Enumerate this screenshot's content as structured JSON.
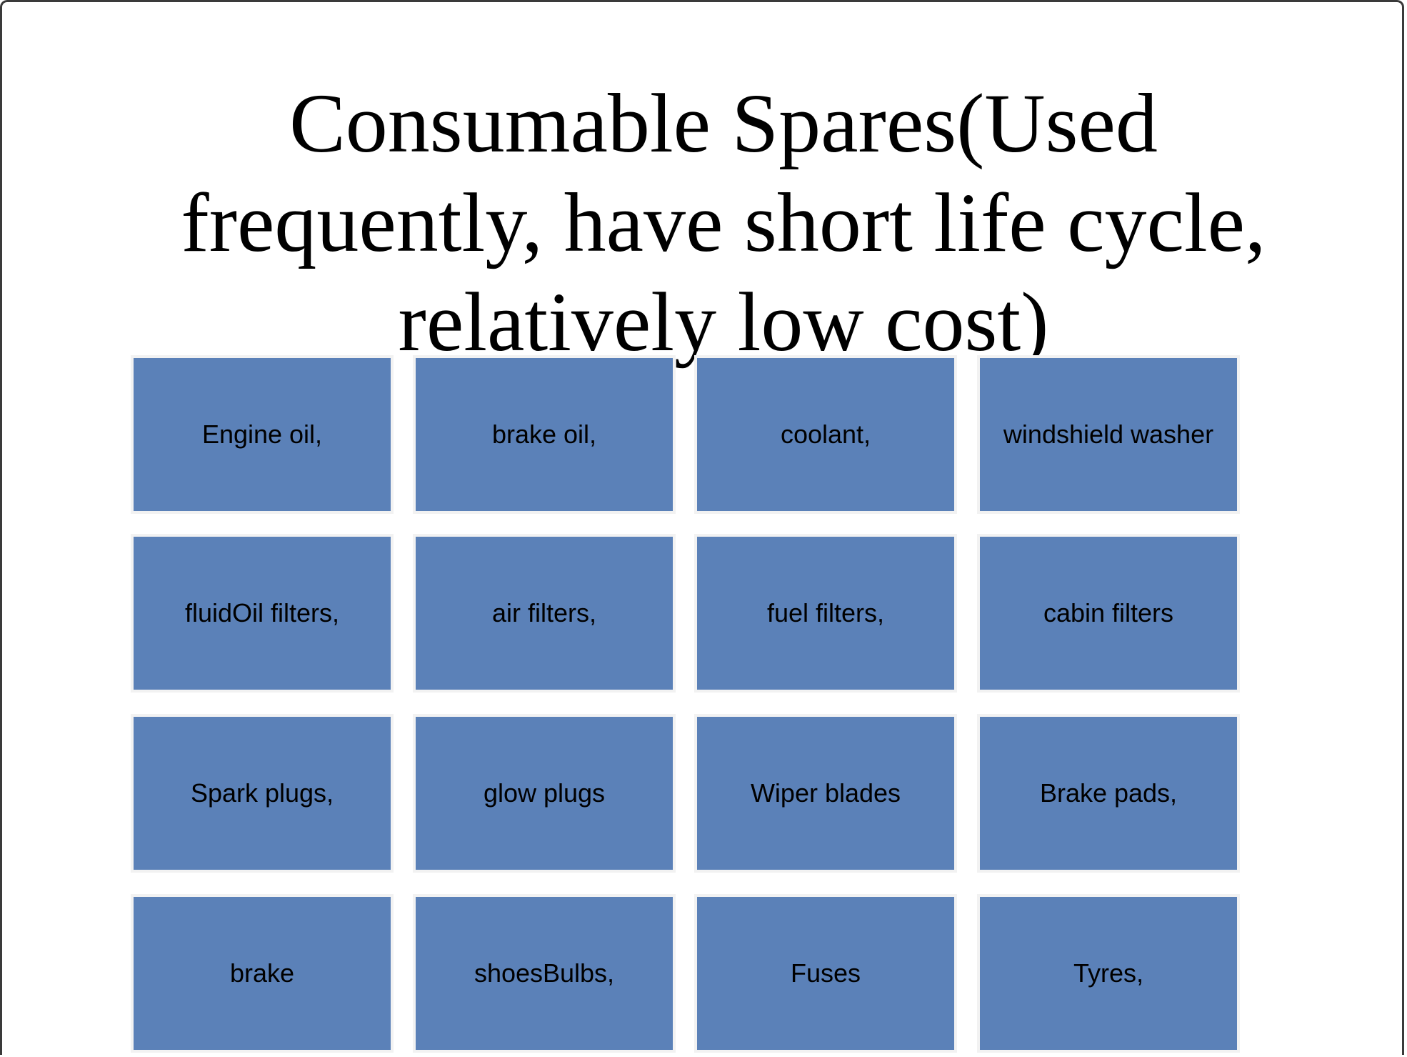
{
  "slide": {
    "title_lines": [
      "Consumable Spares(Used",
      "frequently, have short life cycle,",
      "relatively low cost)"
    ],
    "items": [
      "Engine oil,",
      "brake oil,",
      "coolant,",
      "windshield washer",
      "fluidOil filters,",
      "air filters,",
      "fuel filters,",
      "cabin filters",
      "Spark plugs,",
      "glow plugs",
      "Wiper blades",
      "Brake pads,",
      "brake",
      "shoesBulbs,",
      "Fuses",
      "Tyres,"
    ]
  },
  "colors": {
    "tile_fill": "#5b81b8",
    "tile_border": "#f2f2f2"
  }
}
